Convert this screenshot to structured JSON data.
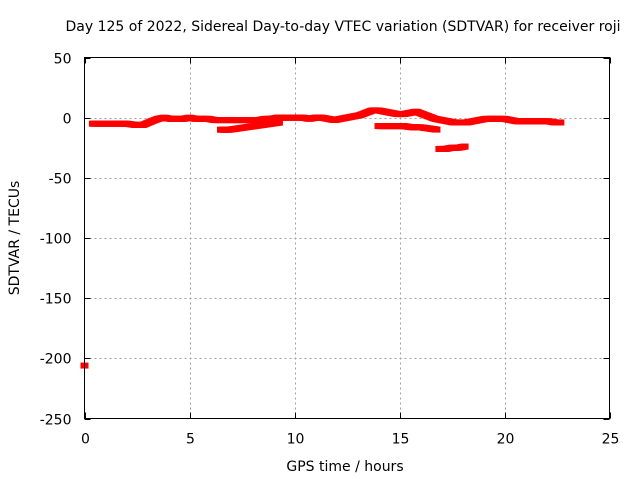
{
  "chart_data": {
    "type": "scatter",
    "title": "Day 125 of 2022, Sidereal Day-to-day VTEC variation (SDTVAR) for receiver roji",
    "xlabel": "GPS time / hours",
    "ylabel": "SDTVAR / TECUs",
    "xlim": [
      0,
      25
    ],
    "ylim": [
      -250,
      50
    ],
    "x_ticks": [
      0,
      5,
      10,
      15,
      20,
      25
    ],
    "y_ticks": [
      -250,
      -200,
      -150,
      -100,
      -50,
      0,
      50
    ],
    "x_tick_labels": [
      "0",
      "5",
      "10",
      "15",
      "20",
      "25"
    ],
    "y_tick_labels": [
      "-250",
      "-200",
      "-150",
      "-100",
      "-50",
      "0",
      "50"
    ],
    "grid": true,
    "marker_color": "#ff0000",
    "series": [
      {
        "x": [
          0.0,
          0.4,
          0.8,
          1.2,
          1.6,
          2.0,
          2.4,
          2.8,
          3.2,
          3.5,
          3.8,
          4.1,
          4.4,
          4.7,
          5.0,
          5.3,
          5.6,
          5.9,
          6.2,
          6.5,
          6.8,
          7.1,
          7.4,
          7.7,
          8.0,
          8.3,
          8.6,
          8.9,
          9.2,
          9.5,
          9.8,
          10.1,
          10.4,
          10.7,
          11.0,
          11.3,
          11.6,
          11.9,
          12.2,
          12.5,
          12.8,
          13.1,
          13.4,
          13.7,
          14.0,
          14.3,
          14.6,
          14.9,
          15.2,
          15.5,
          15.8,
          16.1,
          16.4,
          16.7,
          17.0,
          17.3,
          17.6,
          17.9,
          18.2,
          18.5,
          18.8,
          19.1,
          19.4,
          19.7,
          20.0,
          20.3,
          20.6,
          20.9,
          21.2,
          21.5,
          21.8,
          22.1,
          22.4,
          22.7
        ],
        "y": [
          -206,
          -5,
          -5,
          -5,
          -5,
          -5,
          -6,
          -6,
          -3,
          -1,
          0,
          -1,
          -1,
          -1,
          0,
          -1,
          -1,
          -1,
          -2,
          -2,
          -2,
          -2,
          -2,
          -2,
          -2,
          -2,
          -1,
          -1,
          0,
          0,
          0,
          0,
          0,
          -1,
          0,
          0,
          -1,
          -2,
          -1,
          0,
          1,
          2,
          4,
          6,
          6,
          5,
          4,
          3,
          3,
          4,
          5,
          3,
          1,
          -1,
          -2,
          -3,
          -4,
          -4,
          -4,
          -3,
          -2,
          -1,
          -1,
          -1,
          -1,
          -2,
          -3,
          -3,
          -3,
          -3,
          -3,
          -3,
          -4,
          -4
        ]
      },
      {
        "x": [
          6.5,
          6.9,
          7.3,
          7.7,
          8.1,
          8.5,
          8.9,
          9.3
        ],
        "y": [
          -10,
          -10,
          -9,
          -8,
          -7,
          -6,
          -5,
          -4
        ]
      },
      {
        "x": [
          14.0,
          14.4,
          14.8,
          15.2,
          15.6,
          16.0,
          16.4,
          16.8
        ],
        "y": [
          -7,
          -7,
          -7,
          -7,
          -8,
          -8,
          -9,
          -10
        ]
      },
      {
        "x": [
          16.9,
          17.2,
          17.5,
          17.8,
          18.1
        ],
        "y": [
          -26,
          -26,
          -25,
          -25,
          -24
        ]
      }
    ]
  }
}
